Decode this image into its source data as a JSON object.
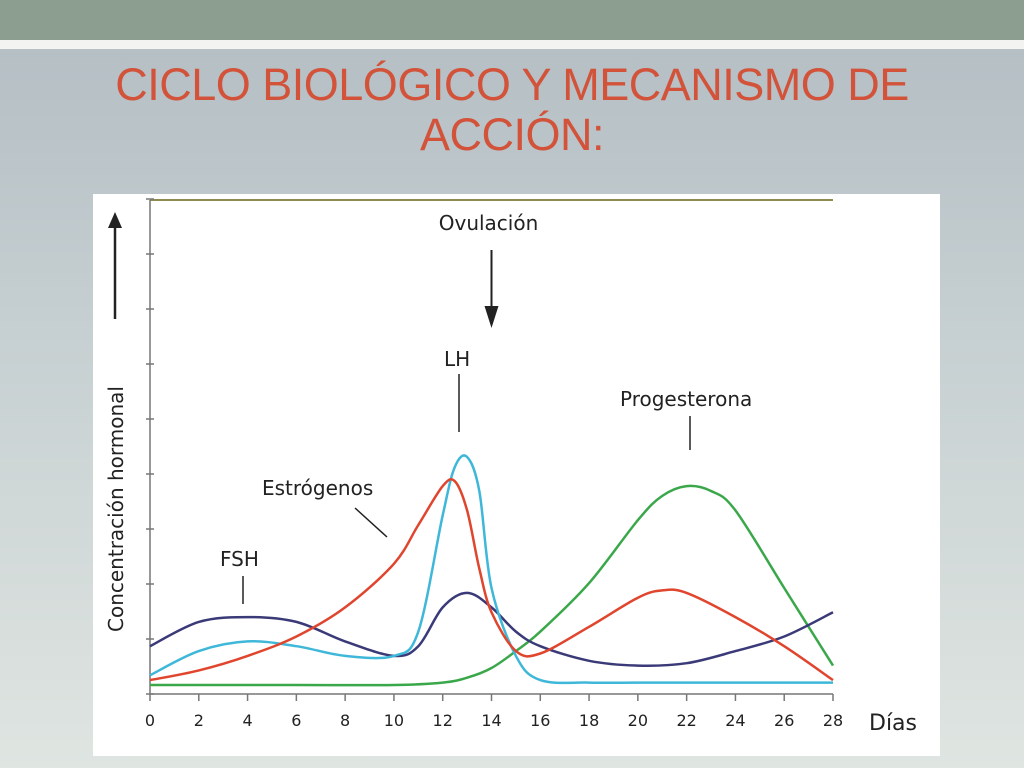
{
  "slide": {
    "title_line1": "CICLO BIOLÓGICO Y MECANISMO DE",
    "title_line2": "ACCIÓN:"
  },
  "chart_data": {
    "type": "line",
    "xlabel": "Días",
    "ylabel": "Concentración hormonal",
    "xlim": [
      0,
      28
    ],
    "x_ticks": [
      "0",
      "2",
      "4",
      "6",
      "8",
      "10",
      "12",
      "14",
      "16",
      "18",
      "20",
      "22",
      "24",
      "26",
      "28"
    ],
    "y_range": [
      0,
      10
    ],
    "y_tick_labels": false,
    "grid": false,
    "annotations": [
      {
        "text": "Ovulación",
        "x": 14
      }
    ],
    "colors": {
      "FSH": "#3a3a78",
      "LH": "#3fb7d9",
      "Estrógenos": "#e0452e",
      "Progesterona": "#3aa84a"
    },
    "series": [
      {
        "name": "FSH",
        "x": [
          0,
          2,
          4,
          6,
          8,
          10,
          11,
          12,
          13,
          14,
          15,
          16,
          18,
          20,
          22,
          24,
          26,
          28
        ],
        "y": [
          0.8,
          1.3,
          1.4,
          1.3,
          0.9,
          0.6,
          0.8,
          1.6,
          1.9,
          1.6,
          1.1,
          0.8,
          0.5,
          0.4,
          0.45,
          0.7,
          1.0,
          1.5
        ]
      },
      {
        "name": "LH",
        "x": [
          0,
          2,
          4,
          6,
          8,
          10,
          11,
          12,
          12.5,
          13,
          13.5,
          14,
          15,
          16,
          18,
          20,
          22,
          24,
          26,
          28
        ],
        "y": [
          0.2,
          0.7,
          0.9,
          0.8,
          0.6,
          0.6,
          1.1,
          3.5,
          4.5,
          4.7,
          4.0,
          2.0,
          0.6,
          0.1,
          0.05,
          0.05,
          0.05,
          0.05,
          0.05,
          0.05
        ]
      },
      {
        "name": "Estrógenos",
        "x": [
          0,
          2,
          4,
          6,
          8,
          10,
          11,
          12,
          12.5,
          13,
          13.5,
          14,
          15,
          16,
          18,
          20,
          21,
          22,
          24,
          26,
          28
        ],
        "y": [
          0.1,
          0.3,
          0.6,
          1.0,
          1.6,
          2.5,
          3.3,
          4.1,
          4.2,
          3.6,
          2.4,
          1.5,
          0.7,
          0.65,
          1.2,
          1.8,
          1.95,
          1.9,
          1.4,
          0.8,
          0.1
        ]
      },
      {
        "name": "Progesterona",
        "x": [
          0,
          6,
          10,
          12,
          13,
          14,
          15,
          16,
          18,
          20,
          21,
          22,
          23,
          24,
          26,
          28
        ],
        "y": [
          0.0,
          0.0,
          0.0,
          0.05,
          0.15,
          0.35,
          0.7,
          1.1,
          2.1,
          3.4,
          3.9,
          4.1,
          4.0,
          3.6,
          2.0,
          0.4
        ]
      }
    ]
  }
}
